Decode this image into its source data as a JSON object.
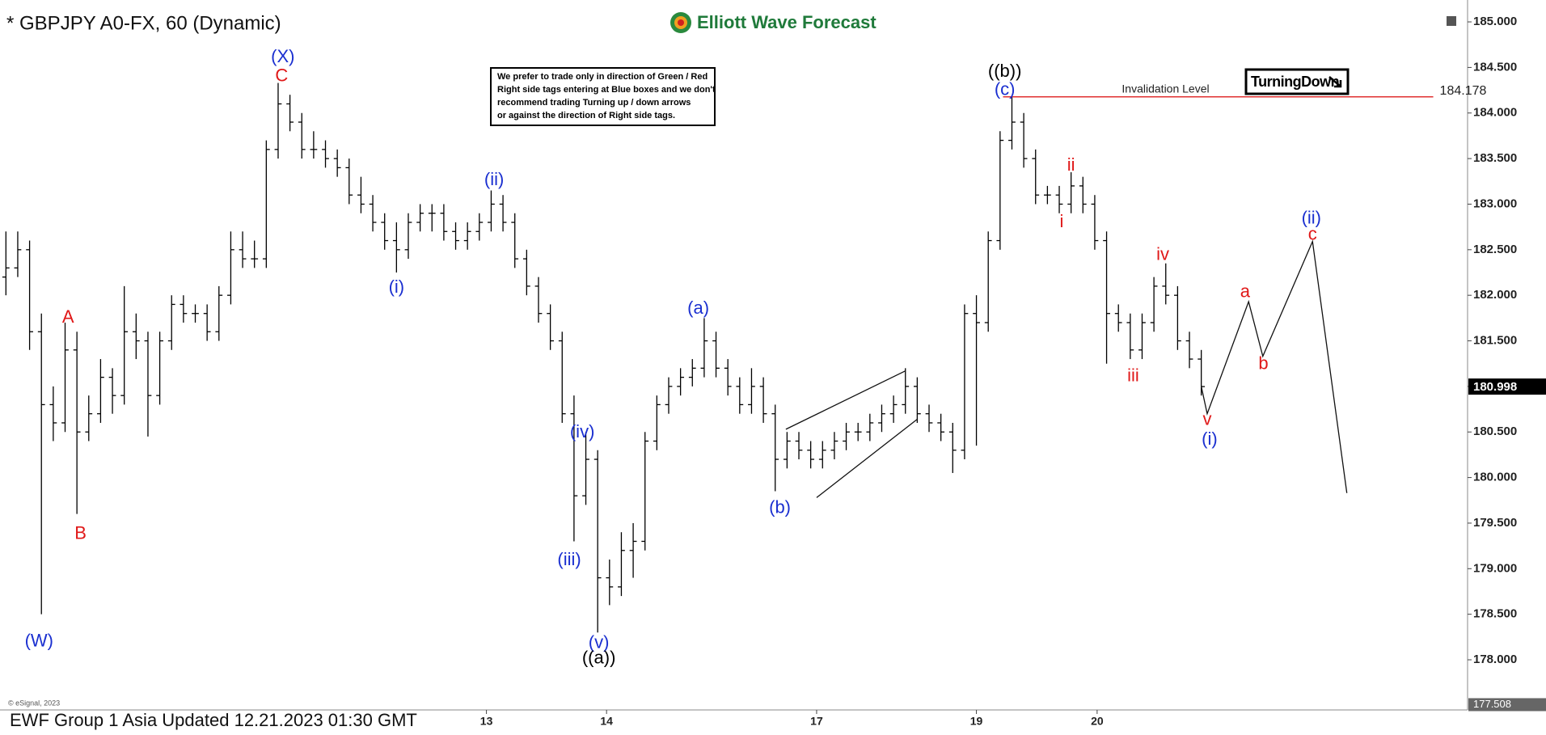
{
  "chart_data": {
    "type": "ohlc",
    "title": "* GBPJPY A0-FX, 60 (Dynamic)",
    "brand": "Elliott Wave Forecast",
    "note": [
      "We prefer to trade only in direction of Green / Red",
      "Right side tags entering at Blue boxes and we don't",
      "recommend trading Turning up / down arrows",
      "or against the direction of Right side tags."
    ],
    "badge": "TurningDown",
    "footer": "EWF Group 1 Asia Updated 12.21.2023 01:30 GMT",
    "copyright": "© eSignal, 2023",
    "color": "#000000",
    "bars": [
      [
        182.2,
        182.7,
        182.0,
        182.3
      ],
      [
        182.3,
        182.7,
        182.2,
        182.5
      ],
      [
        182.5,
        182.6,
        181.4,
        181.6
      ],
      [
        181.6,
        181.8,
        178.5,
        180.8
      ],
      [
        180.8,
        181.0,
        180.4,
        180.6
      ],
      [
        180.6,
        181.7,
        180.5,
        181.4
      ],
      [
        181.4,
        181.6,
        179.6,
        180.5
      ],
      [
        180.5,
        180.9,
        180.4,
        180.7
      ],
      [
        180.7,
        181.3,
        180.6,
        181.1
      ],
      [
        181.1,
        181.2,
        180.7,
        180.9
      ],
      [
        180.9,
        182.1,
        180.8,
        181.6
      ],
      [
        181.6,
        181.8,
        181.3,
        181.5
      ],
      [
        181.5,
        181.6,
        180.45,
        180.9
      ],
      [
        180.9,
        181.6,
        180.8,
        181.5
      ],
      [
        181.5,
        182.0,
        181.4,
        181.9
      ],
      [
        181.9,
        182.0,
        181.7,
        181.8
      ],
      [
        181.8,
        181.9,
        181.7,
        181.8
      ],
      [
        181.8,
        181.9,
        181.5,
        181.6
      ],
      [
        181.6,
        182.1,
        181.5,
        182.0
      ],
      [
        182.0,
        182.7,
        181.9,
        182.5
      ],
      [
        182.5,
        182.7,
        182.3,
        182.4
      ],
      [
        182.4,
        182.6,
        182.3,
        182.4
      ],
      [
        182.4,
        183.7,
        182.3,
        183.6
      ],
      [
        183.6,
        184.33,
        183.5,
        184.1
      ],
      [
        184.1,
        184.2,
        183.8,
        183.9
      ],
      [
        183.9,
        184.0,
        183.5,
        183.6
      ],
      [
        183.6,
        183.8,
        183.5,
        183.6
      ],
      [
        183.6,
        183.7,
        183.4,
        183.5
      ],
      [
        183.5,
        183.6,
        183.3,
        183.4
      ],
      [
        183.4,
        183.5,
        183.0,
        183.1
      ],
      [
        183.1,
        183.3,
        182.9,
        183.0
      ],
      [
        183.0,
        183.1,
        182.7,
        182.8
      ],
      [
        182.8,
        182.9,
        182.5,
        182.6
      ],
      [
        182.6,
        182.8,
        182.25,
        182.5
      ],
      [
        182.5,
        182.9,
        182.4,
        182.8
      ],
      [
        182.8,
        183.0,
        182.7,
        182.9
      ],
      [
        182.9,
        183.0,
        182.7,
        182.9
      ],
      [
        182.9,
        183.0,
        182.6,
        182.7
      ],
      [
        182.7,
        182.8,
        182.5,
        182.6
      ],
      [
        182.6,
        182.8,
        182.5,
        182.7
      ],
      [
        182.7,
        182.9,
        182.6,
        182.8
      ],
      [
        182.8,
        183.15,
        182.7,
        183.0
      ],
      [
        183.0,
        183.1,
        182.7,
        182.8
      ],
      [
        182.8,
        182.9,
        182.3,
        182.4
      ],
      [
        182.4,
        182.5,
        182.0,
        182.1
      ],
      [
        182.1,
        182.2,
        181.7,
        181.8
      ],
      [
        181.8,
        181.9,
        181.4,
        181.5
      ],
      [
        181.5,
        181.6,
        180.6,
        180.7
      ],
      [
        180.7,
        180.9,
        179.3,
        179.8
      ],
      [
        179.8,
        180.5,
        179.7,
        180.2
      ],
      [
        180.2,
        180.3,
        178.3,
        178.9
      ],
      [
        178.9,
        179.1,
        178.6,
        178.8
      ],
      [
        178.8,
        179.4,
        178.7,
        179.2
      ],
      [
        179.2,
        179.5,
        178.9,
        179.3
      ],
      [
        179.3,
        180.5,
        179.2,
        180.4
      ],
      [
        180.4,
        180.9,
        180.3,
        180.8
      ],
      [
        180.8,
        181.1,
        180.7,
        181.0
      ],
      [
        181.0,
        181.2,
        180.9,
        181.1
      ],
      [
        181.1,
        181.3,
        181.0,
        181.2
      ],
      [
        181.2,
        181.75,
        181.1,
        181.5
      ],
      [
        181.5,
        181.6,
        181.1,
        181.2
      ],
      [
        181.2,
        181.3,
        180.9,
        181.0
      ],
      [
        181.0,
        181.1,
        180.7,
        180.8
      ],
      [
        180.8,
        181.2,
        180.7,
        181.0
      ],
      [
        181.0,
        181.1,
        180.6,
        180.7
      ],
      [
        180.7,
        180.8,
        179.85,
        180.2
      ],
      [
        180.2,
        180.5,
        180.1,
        180.4
      ],
      [
        180.4,
        180.5,
        180.2,
        180.3
      ],
      [
        180.3,
        180.4,
        180.1,
        180.2
      ],
      [
        180.2,
        180.4,
        180.1,
        180.3
      ],
      [
        180.3,
        180.5,
        180.2,
        180.4
      ],
      [
        180.4,
        180.6,
        180.3,
        180.5
      ],
      [
        180.5,
        180.6,
        180.4,
        180.5
      ],
      [
        180.5,
        180.7,
        180.4,
        180.6
      ],
      [
        180.6,
        180.8,
        180.5,
        180.7
      ],
      [
        180.7,
        180.9,
        180.6,
        180.8
      ],
      [
        180.8,
        181.2,
        180.7,
        181.0
      ],
      [
        181.0,
        181.1,
        180.6,
        180.7
      ],
      [
        180.7,
        180.8,
        180.5,
        180.6
      ],
      [
        180.6,
        180.7,
        180.4,
        180.5
      ],
      [
        180.5,
        180.6,
        180.05,
        180.3
      ],
      [
        180.3,
        181.9,
        180.2,
        181.8
      ],
      [
        181.8,
        182.0,
        180.35,
        181.7
      ],
      [
        181.7,
        182.7,
        181.6,
        182.6
      ],
      [
        182.6,
        183.8,
        182.5,
        183.7
      ],
      [
        183.7,
        184.178,
        183.6,
        183.9
      ],
      [
        183.9,
        184.0,
        183.4,
        183.5
      ],
      [
        183.5,
        183.6,
        183.0,
        183.1
      ],
      [
        183.1,
        183.2,
        183.0,
        183.1
      ],
      [
        183.1,
        183.2,
        182.9,
        183.0
      ],
      [
        183.0,
        183.35,
        182.9,
        183.2
      ],
      [
        183.2,
        183.3,
        182.9,
        183.0
      ],
      [
        183.0,
        183.1,
        182.5,
        182.6
      ],
      [
        182.6,
        182.7,
        181.25,
        181.8
      ],
      [
        181.8,
        181.9,
        181.6,
        181.7
      ],
      [
        181.7,
        181.8,
        181.3,
        181.4
      ],
      [
        181.4,
        181.8,
        181.3,
        181.7
      ],
      [
        181.7,
        182.2,
        181.6,
        182.1
      ],
      [
        182.1,
        182.35,
        181.9,
        182.0
      ],
      [
        182.0,
        182.1,
        181.4,
        181.5
      ],
      [
        181.5,
        181.6,
        181.2,
        181.3
      ],
      [
        181.3,
        181.4,
        180.9,
        180.998
      ]
    ],
    "xlim": [
      0,
      124
    ],
    "xticks": [
      {
        "value": 41.1,
        "label": "13"
      },
      {
        "value": 51.25,
        "label": "14"
      },
      {
        "value": 69,
        "label": "17"
      },
      {
        "value": 82.5,
        "label": "19"
      },
      {
        "value": 92.7,
        "label": "20"
      }
    ],
    "ylim": [
      177.45,
      185.24
    ],
    "yticks": [
      {
        "value": 178,
        "label": "178.000"
      },
      {
        "value": 178.5,
        "label": "178.500"
      },
      {
        "value": 179,
        "label": "179.000"
      },
      {
        "value": 179.5,
        "label": "179.500"
      },
      {
        "value": 180,
        "label": "180.000"
      },
      {
        "value": 180.5,
        "label": "180.500"
      },
      {
        "value": 181,
        "label": "181.000"
      },
      {
        "value": 181.5,
        "label": "181.500"
      },
      {
        "value": 182,
        "label": "182.000"
      },
      {
        "value": 182.5,
        "label": "182.500"
      },
      {
        "value": 183,
        "label": "183.000"
      },
      {
        "value": 183.5,
        "label": "183.500"
      },
      {
        "value": 184,
        "label": "184.000"
      },
      {
        "value": 184.5,
        "label": "184.500"
      },
      {
        "value": 185,
        "label": "185.000"
      }
    ],
    "last_price": 180.998,
    "axis_low": 177.508,
    "invalidation": {
      "value": 184.178,
      "text": "Invalidation Level",
      "x": [
        84.75,
        121.1
      ],
      "color": "#e03030"
    },
    "trendlines": [
      {
        "x": [
          66.4,
          76.5
        ],
        "y": [
          180.53,
          181.17
        ]
      },
      {
        "x": [
          69,
          77.5
        ],
        "y": [
          179.78,
          180.64
        ]
      }
    ],
    "projection": {
      "x": [
        101.5,
        102,
        105.5,
        106.7,
        110.9,
        113.8
      ],
      "y": [
        181.0,
        180.7,
        181.93,
        181.33,
        182.59,
        179.83
      ]
    },
    "annotations": [
      {
        "text": "(W)",
        "color": "#1a2fd0",
        "x": 3.3,
        "y": 178.2
      },
      {
        "text": "A",
        "color": "#e01818",
        "x": 5.75,
        "y": 181.75
      },
      {
        "text": "B",
        "color": "#e01818",
        "x": 6.8,
        "y": 179.38
      },
      {
        "text": "(X)",
        "color": "#1a2fd0",
        "x": 23.9,
        "y": 184.61
      },
      {
        "text": "C",
        "color": "#e01818",
        "x": 23.8,
        "y": 184.4
      },
      {
        "text": "(i)",
        "color": "#1a2fd0",
        "x": 33.5,
        "y": 182.08
      },
      {
        "text": "(ii)",
        "color": "#1a2fd0",
        "x": 41.75,
        "y": 183.26
      },
      {
        "text": "(iii)",
        "color": "#1a2fd0",
        "x": 48.1,
        "y": 179.09
      },
      {
        "text": "(iv)",
        "color": "#1a2fd0",
        "x": 49.2,
        "y": 180.49
      },
      {
        "text": "(v)",
        "color": "#1a2fd0",
        "x": 50.6,
        "y": 178.18
      },
      {
        "text": "((a))",
        "color": "#000000",
        "x": 50.6,
        "y": 178.01
      },
      {
        "text": "(a)",
        "color": "#1a2fd0",
        "x": 59,
        "y": 181.85
      },
      {
        "text": "(b)",
        "color": "#1a2fd0",
        "x": 65.9,
        "y": 179.66
      },
      {
        "text": "((b))",
        "color": "#000000",
        "x": 84.9,
        "y": 184.45
      },
      {
        "text": "(c)",
        "color": "#1a2fd0",
        "x": 84.9,
        "y": 184.25
      },
      {
        "text": "i",
        "color": "#e01818",
        "x": 89.7,
        "y": 182.8
      },
      {
        "text": "ii",
        "color": "#e01818",
        "x": 90.5,
        "y": 183.42
      },
      {
        "text": "iii",
        "color": "#e01818",
        "x": 95.75,
        "y": 181.11
      },
      {
        "text": "iv",
        "color": "#e01818",
        "x": 98.25,
        "y": 182.44
      },
      {
        "text": "v",
        "color": "#e01818",
        "x": 102,
        "y": 180.63
      },
      {
        "text": "(i)",
        "color": "#1a2fd0",
        "x": 102.2,
        "y": 180.41
      },
      {
        "text": "a",
        "color": "#e01818",
        "x": 105.2,
        "y": 182.03
      },
      {
        "text": "b",
        "color": "#e01818",
        "x": 106.75,
        "y": 181.24
      },
      {
        "text": "(ii)",
        "color": "#1a2fd0",
        "x": 110.8,
        "y": 182.84
      },
      {
        "text": "c",
        "color": "#e01818",
        "x": 110.9,
        "y": 182.66
      }
    ]
  }
}
